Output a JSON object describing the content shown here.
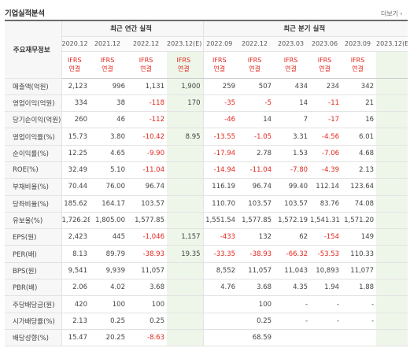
{
  "title": "기업실적분석",
  "more_label": "더보기",
  "header": {
    "row_label": "주요재무정보",
    "annual_group": "최근 연간 실적",
    "quarter_group": "최근 분기 실적",
    "periods": [
      "2020.12",
      "2021.12",
      "2022.12",
      "2023.12(E)",
      "2022.09",
      "2022.12",
      "2023.03",
      "2023.06",
      "2023.09",
      "2023.12(E)"
    ],
    "ifrs_line1": "IFRS",
    "ifrs_line2": "연결"
  },
  "rows": [
    {
      "label": "매출액(억원)",
      "values": [
        "2,123",
        "996",
        "1,131",
        "1,900",
        "259",
        "507",
        "434",
        "234",
        "342",
        ""
      ]
    },
    {
      "label": "영업이익(억원)",
      "values": [
        "334",
        "38",
        "-118",
        "170",
        "-35",
        "-5",
        "14",
        "-11",
        "21",
        ""
      ]
    },
    {
      "label": "당기순이익(억원)",
      "values": [
        "260",
        "46",
        "-112",
        "",
        "-46",
        "14",
        "7",
        "-17",
        "16",
        ""
      ]
    },
    {
      "label": "영업이익률(%)",
      "values": [
        "15.73",
        "3.80",
        "-10.42",
        "8.95",
        "-13.55",
        "-1.05",
        "3.31",
        "-4.56",
        "6.01",
        ""
      ]
    },
    {
      "label": "순이익률(%)",
      "values": [
        "12.25",
        "4.65",
        "-9.90",
        "",
        "-17.94",
        "2.78",
        "1.53",
        "-7.06",
        "4.68",
        ""
      ]
    },
    {
      "label": "ROE(%)",
      "values": [
        "32.49",
        "5.10",
        "-11.04",
        "",
        "-14.94",
        "-11.04",
        "-7.80",
        "-4.39",
        "2.13",
        ""
      ]
    },
    {
      "label": "부채비율(%)",
      "values": [
        "70.44",
        "76.00",
        "96.74",
        "",
        "116.19",
        "96.74",
        "99.40",
        "112.14",
        "123.64",
        ""
      ]
    },
    {
      "label": "당좌비율(%)",
      "values": [
        "185.62",
        "164.17",
        "103.57",
        "",
        "110.70",
        "103.57",
        "103.57",
        "83.76",
        "74.08",
        ""
      ]
    },
    {
      "label": "유보율(%)",
      "values": [
        "1,726.28",
        "1,805.00",
        "1,577.85",
        "",
        "1,551.54",
        "1,577.85",
        "1,572.19",
        "1,541.31",
        "1,571.20",
        ""
      ]
    },
    {
      "label": "EPS(원)",
      "values": [
        "2,423",
        "445",
        "-1,046",
        "1,157",
        "-433",
        "132",
        "62",
        "-154",
        "149",
        ""
      ]
    },
    {
      "label": "PER(배)",
      "values": [
        "8.13",
        "89.79",
        "-38.93",
        "19.35",
        "-33.35",
        "-38.93",
        "-66.32",
        "-53.53",
        "110.33",
        ""
      ]
    },
    {
      "label": "BPS(원)",
      "values": [
        "9,541",
        "9,939",
        "11,057",
        "",
        "8,552",
        "11,057",
        "11,043",
        "10,893",
        "11,077",
        ""
      ]
    },
    {
      "label": "PBR(배)",
      "values": [
        "2.06",
        "4.02",
        "3.68",
        "",
        "4.76",
        "3.68",
        "4.35",
        "1.94",
        "1.88",
        ""
      ]
    },
    {
      "label": "주당배당금(원)",
      "values": [
        "420",
        "100",
        "100",
        "",
        "",
        "100",
        "-",
        "-",
        "-",
        ""
      ]
    },
    {
      "label": "시가배당률(%)",
      "values": [
        "2.13",
        "0.25",
        "0.25",
        "",
        "",
        "0.25",
        "-",
        "-",
        "-",
        ""
      ]
    },
    {
      "label": "배당성향(%)",
      "values": [
        "15.47",
        "20.25",
        "-8.63",
        "",
        "",
        "68.59",
        "",
        "",
        "",
        ""
      ]
    }
  ],
  "colors": {
    "negative": "#e1261c",
    "estimate_bg": "#eef6ea"
  }
}
